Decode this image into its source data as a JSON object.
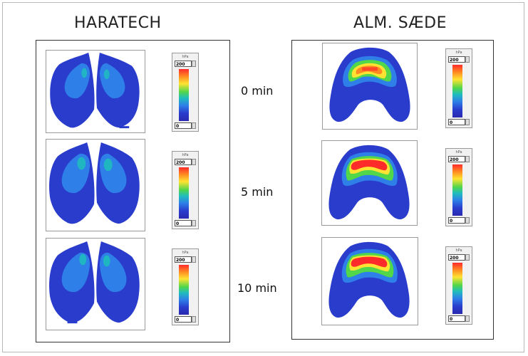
{
  "titles": {
    "left": "HARATECH",
    "right": "ALM. SÆDE"
  },
  "times": [
    "0 min",
    "5 min",
    "10 min"
  ],
  "scale": {
    "unit": "hPa",
    "max": "200",
    "min": "0"
  },
  "colors": {
    "blue": "#2a3ccc",
    "cyan": "#1fbdbd",
    "green": "#52d64a",
    "yellow": "#ffe332",
    "orange": "#ff8a22",
    "red": "#ff2a2a"
  }
}
